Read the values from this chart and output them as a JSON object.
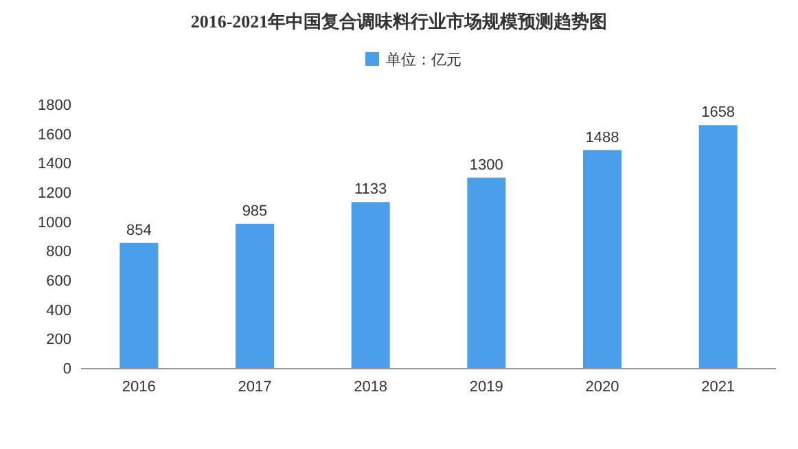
{
  "chart_data": {
    "type": "bar",
    "title": "2016-2021年中国复合调味料行业市场规模预测趋势图",
    "categories": [
      "2016",
      "2017",
      "2018",
      "2019",
      "2020",
      "2021"
    ],
    "series": [
      {
        "name": "单位：亿元",
        "color": "#4a9eea",
        "values": [
          854,
          985,
          1133,
          1300,
          1488,
          1658
        ]
      }
    ],
    "ylim": [
      0,
      1800
    ],
    "yticks": [
      0,
      200,
      400,
      600,
      800,
      1000,
      1200,
      1400,
      1600,
      1800
    ],
    "data_labels": true,
    "legend": "top"
  }
}
